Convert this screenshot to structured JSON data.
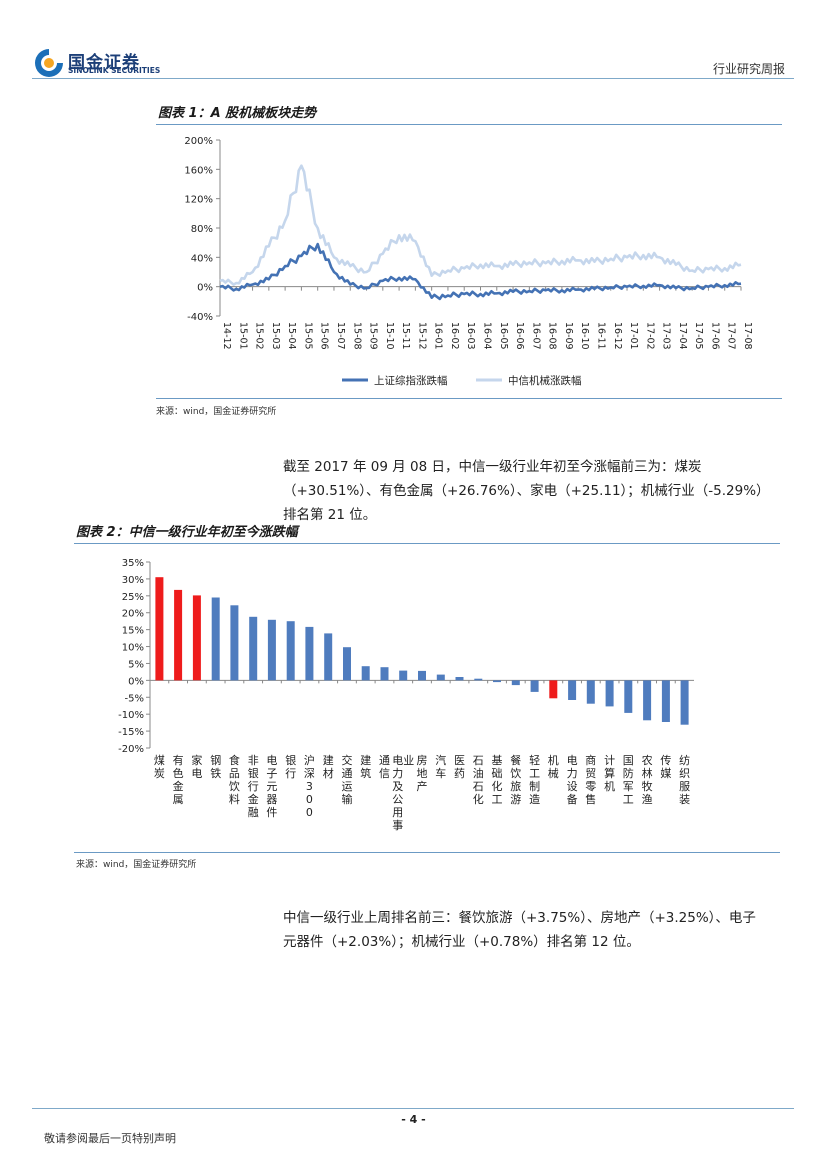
{
  "header": {
    "logo_cn": "国金证券",
    "logo_en": "SINOLINK SECURITIES",
    "report_type": "行业研究周报"
  },
  "figure1": {
    "title": "图表 1：A 股机械板块走势",
    "source": "来源：wind，国金证券研究所",
    "chart_data": {
      "type": "line",
      "ylim": [
        -40,
        200
      ],
      "yticks": [
        "200%",
        "160%",
        "120%",
        "80%",
        "40%",
        "0%",
        "-40%"
      ],
      "xticks": [
        "14-12",
        "15-01",
        "15-02",
        "15-03",
        "15-04",
        "15-05",
        "15-06",
        "15-07",
        "15-08",
        "15-09",
        "15-10",
        "15-11",
        "15-12",
        "16-01",
        "16-02",
        "16-03",
        "16-04",
        "16-05",
        "16-06",
        "16-07",
        "16-08",
        "16-09",
        "16-10",
        "16-11",
        "16-12",
        "17-01",
        "17-02",
        "17-03",
        "17-04",
        "17-05",
        "17-06",
        "17-07",
        "17-08"
      ],
      "series": [
        {
          "name": "上证综指涨跌幅",
          "color": "#4472b4",
          "values": [
            0,
            -3,
            3,
            10,
            28,
            42,
            58,
            20,
            3,
            -2,
            8,
            12,
            10,
            -15,
            -12,
            -10,
            -10,
            -9,
            -7,
            -6,
            -5,
            -5,
            -4,
            -3,
            -1,
            0,
            1,
            2,
            -2,
            -2,
            0,
            2,
            4
          ]
        },
        {
          "name": "中信机械涨跌幅",
          "color": "#c5d6ec",
          "values": [
            8,
            5,
            20,
            55,
            90,
            165,
            80,
            40,
            28,
            20,
            45,
            70,
            62,
            15,
            22,
            25,
            30,
            28,
            30,
            33,
            32,
            35,
            36,
            34,
            38,
            40,
            43,
            40,
            30,
            22,
            24,
            25,
            30
          ]
        }
      ],
      "grid": false,
      "legend": "bottom"
    }
  },
  "paragraph1": [
    "截至 2017 年 09 月 08 日，中信一级行业年初至今涨幅前三为：煤炭",
    "（+30.51%）、有色金属（+26.76%）、家电（+25.11）；机械行业（-5.29%）",
    "排名第 21 位。"
  ],
  "figure2": {
    "title": "图表 2：中信一级行业年初至今涨跌幅",
    "source": "来源：wind，国金证券研究所",
    "chart_data": {
      "type": "bar",
      "ylim": [
        -20,
        35
      ],
      "yticks": [
        "35%",
        "30%",
        "25%",
        "20%",
        "15%",
        "10%",
        "5%",
        "0%",
        "-5%",
        "-10%",
        "-15%",
        "-20%"
      ],
      "categories": [
        "煤炭",
        "有色金属",
        "家电",
        "钢铁",
        "食品饮料",
        "非银行金融",
        "电子元器件",
        "银行",
        "沪深300",
        "建材",
        "交通运输",
        "建筑",
        "通信",
        "电力及公用事业",
        "房地产",
        "汽车",
        "医药",
        "石油石化",
        "基础化工",
        "餐饮旅游",
        "轻工制造",
        "机械",
        "电力设备",
        "商贸零售",
        "计算机",
        "国防军工",
        "农林牧渔",
        "传媒",
        "纺织服装"
      ],
      "values": [
        30.51,
        26.76,
        25.11,
        24.5,
        22.2,
        18.8,
        17.9,
        17.5,
        15.8,
        13.9,
        9.8,
        4.2,
        3.9,
        2.9,
        2.8,
        1.7,
        1.0,
        0.5,
        -0.5,
        -1.4,
        -3.4,
        -5.29,
        -5.8,
        -6.9,
        -7.7,
        -9.6,
        -11.8,
        -12.3,
        -13.1
      ],
      "highlight": [
        "煤炭",
        "有色金属",
        "家电",
        "机械"
      ],
      "colors": {
        "normal": "#4f7cbe",
        "highlight": "#ee1c1c"
      }
    }
  },
  "paragraph2": [
    "中信一级行业上周排名前三：餐饮旅游（+3.75%）、房地产（+3.25%）、电子",
    "元器件（+2.03%）；机械行业（+0.78%）排名第 12 位。"
  ],
  "footer": {
    "page": "- 4 -",
    "disclaimer": "敬请参阅最后一页特别声明"
  }
}
